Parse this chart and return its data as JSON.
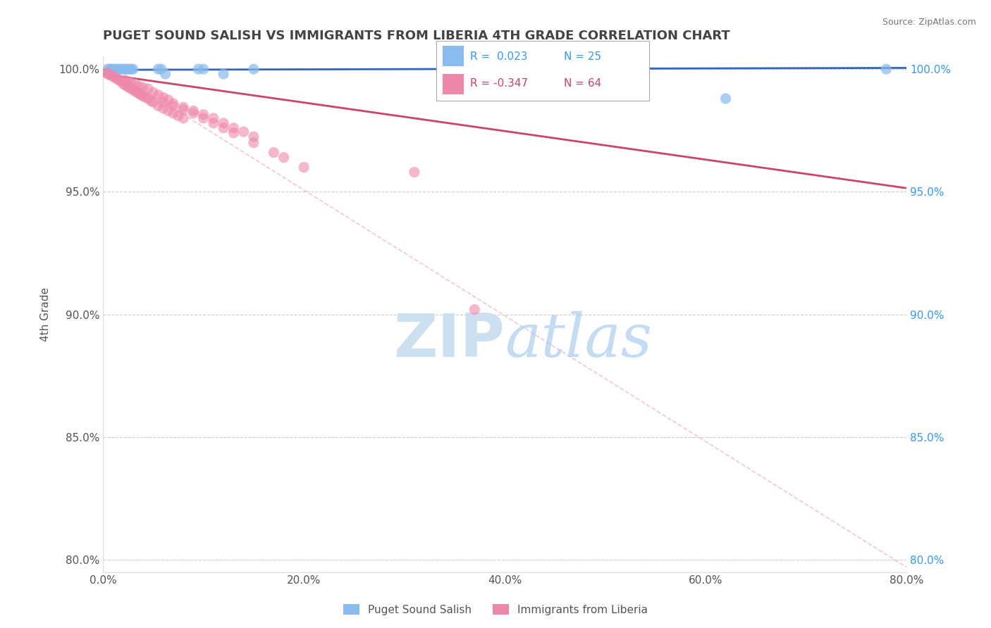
{
  "title": "PUGET SOUND SALISH VS IMMIGRANTS FROM LIBERIA 4TH GRADE CORRELATION CHART",
  "source": "Source: ZipAtlas.com",
  "ylabel": "4th Grade",
  "xlim": [
    0.0,
    0.8
  ],
  "ylim": [
    0.795,
    1.005
  ],
  "xtick_labels": [
    "0.0%",
    "20.0%",
    "40.0%",
    "60.0%",
    "80.0%"
  ],
  "xtick_vals": [
    0.0,
    0.2,
    0.4,
    0.6,
    0.8
  ],
  "ytick_labels": [
    "80.0%",
    "85.0%",
    "90.0%",
    "95.0%",
    "100.0%"
  ],
  "ytick_vals": [
    0.8,
    0.85,
    0.9,
    0.95,
    1.0
  ],
  "legend_labels": [
    "Puget Sound Salish",
    "Immigrants from Liberia"
  ],
  "r_blue": 0.023,
  "n_blue": 25,
  "r_pink": -0.347,
  "n_pink": 64,
  "blue_scatter_x": [
    0.005,
    0.007,
    0.008,
    0.01,
    0.012,
    0.014,
    0.016,
    0.018,
    0.02,
    0.022,
    0.024,
    0.026,
    0.028,
    0.03,
    0.055,
    0.058,
    0.062,
    0.095,
    0.1,
    0.12,
    0.15,
    0.38,
    0.4,
    0.62,
    0.78
  ],
  "blue_scatter_y": [
    1.0,
    1.0,
    1.0,
    1.0,
    1.0,
    1.0,
    1.0,
    1.0,
    1.0,
    1.0,
    1.0,
    1.0,
    1.0,
    1.0,
    1.0,
    1.0,
    0.998,
    1.0,
    1.0,
    0.998,
    1.0,
    1.0,
    1.0,
    0.988,
    1.0
  ],
  "pink_scatter_x": [
    0.003,
    0.005,
    0.006,
    0.008,
    0.01,
    0.012,
    0.014,
    0.016,
    0.018,
    0.02,
    0.022,
    0.024,
    0.026,
    0.028,
    0.03,
    0.032,
    0.034,
    0.036,
    0.038,
    0.04,
    0.042,
    0.045,
    0.048,
    0.05,
    0.055,
    0.06,
    0.065,
    0.07,
    0.075,
    0.08,
    0.022,
    0.025,
    0.028,
    0.032,
    0.036,
    0.04,
    0.045,
    0.05,
    0.055,
    0.06,
    0.065,
    0.07,
    0.08,
    0.09,
    0.1,
    0.11,
    0.12,
    0.13,
    0.14,
    0.15,
    0.06,
    0.07,
    0.08,
    0.09,
    0.1,
    0.11,
    0.12,
    0.13,
    0.15,
    0.17,
    0.18,
    0.2,
    0.31,
    0.37
  ],
  "pink_scatter_y": [
    0.9985,
    0.998,
    0.9978,
    0.9975,
    0.997,
    0.9965,
    0.996,
    0.9955,
    0.995,
    0.994,
    0.9935,
    0.993,
    0.9925,
    0.992,
    0.9915,
    0.991,
    0.9905,
    0.99,
    0.9895,
    0.989,
    0.9885,
    0.988,
    0.987,
    0.9865,
    0.985,
    0.984,
    0.983,
    0.982,
    0.981,
    0.98,
    0.9955,
    0.995,
    0.9945,
    0.994,
    0.993,
    0.9925,
    0.992,
    0.9905,
    0.9895,
    0.9885,
    0.9875,
    0.986,
    0.9845,
    0.983,
    0.9815,
    0.98,
    0.978,
    0.976,
    0.9745,
    0.9725,
    0.9865,
    0.985,
    0.9835,
    0.982,
    0.98,
    0.978,
    0.976,
    0.974,
    0.97,
    0.966,
    0.964,
    0.96,
    0.958,
    0.902
  ],
  "blue_trendline_x": [
    0.0,
    0.8
  ],
  "blue_trendline_y": [
    0.9997,
    1.0005
  ],
  "pink_trendline_x": [
    0.0,
    0.8
  ],
  "pink_trendline_y": [
    0.998,
    0.9515
  ],
  "dashed_line_x": [
    0.0,
    0.8
  ],
  "dashed_line_y": [
    1.002,
    0.797
  ],
  "watermark_part1": "ZIP",
  "watermark_part2": "atlas",
  "watermark_color": "#cce0f0",
  "background_color": "#ffffff",
  "grid_color": "#cccccc",
  "title_color": "#444444",
  "axis_label_color": "#555555",
  "tick_color_left": "#555555",
  "tick_color_right": "#3399ff",
  "blue_scatter_color": "#88bbee",
  "pink_scatter_color": "#ee88aa",
  "blue_line_color": "#3366bb",
  "pink_line_color": "#cc4466",
  "dashed_color": "#dddddd",
  "legend_border_color": "#aaaaaa",
  "legend_r_blue_color": "#3399ff",
  "legend_r_pink_color": "#cc4466",
  "legend_n_blue_color": "#3399ff",
  "legend_n_pink_color": "#cc4466",
  "right_axis_color": "#3399ff"
}
